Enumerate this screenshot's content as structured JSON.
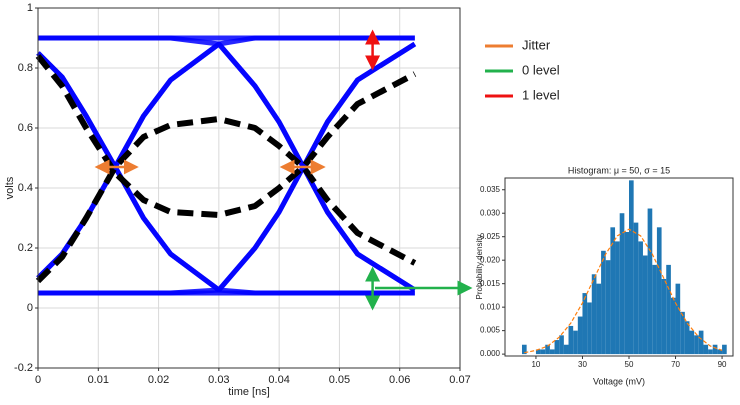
{
  "chart_data": [
    {
      "type": "line",
      "x_label": "time [ns]",
      "y_label": "volts",
      "xlim": [
        0,
        0.07
      ],
      "ylim": [
        -0.2,
        1
      ],
      "xticks": [
        0,
        0.01,
        0.02,
        0.03,
        0.04,
        0.05,
        0.06,
        0.07
      ],
      "yticks": [
        -0.2,
        0,
        0.2,
        0.4,
        0.6,
        0.8,
        1
      ],
      "grid": true,
      "x": [
        0,
        0.004,
        0.008,
        0.0128,
        0.0175,
        0.022,
        0.03,
        0.036,
        0.04,
        0.044,
        0.048,
        0.053,
        0.0625
      ],
      "series": [
        {
          "color": "#0000ff",
          "style": "solid",
          "values": [
            0.1,
            0.18,
            0.3,
            0.47,
            0.64,
            0.76,
            0.88,
            0.9,
            0.9,
            0.9,
            0.9,
            0.9,
            0.9
          ]
        },
        {
          "color": "#0000ff",
          "style": "solid",
          "values": [
            0.1,
            0.18,
            0.3,
            0.47,
            0.64,
            0.76,
            0.88,
            0.74,
            0.62,
            0.47,
            0.32,
            0.18,
            0.06
          ]
        },
        {
          "color": "#0000ff",
          "style": "solid",
          "values": [
            0.85,
            0.77,
            0.64,
            0.47,
            0.3,
            0.18,
            0.06,
            0.05,
            0.05,
            0.05,
            0.05,
            0.05,
            0.05
          ]
        },
        {
          "color": "#0000ff",
          "style": "solid",
          "values": [
            0.85,
            0.77,
            0.64,
            0.47,
            0.3,
            0.18,
            0.06,
            0.2,
            0.32,
            0.47,
            0.62,
            0.76,
            0.88
          ]
        },
        {
          "color": "#0000ff",
          "style": "solid",
          "values": [
            0.9,
            0.9,
            0.9,
            0.9,
            0.9,
            0.9,
            0.9,
            0.9,
            0.9,
            0.9,
            0.9,
            0.9,
            0.9
          ]
        },
        {
          "color": "#0000ff",
          "style": "solid",
          "values": [
            0.05,
            0.05,
            0.05,
            0.05,
            0.05,
            0.05,
            0.05,
            0.05,
            0.05,
            0.05,
            0.05,
            0.05,
            0.05
          ]
        },
        {
          "color": "#0000ff",
          "style": "solid",
          "values": [
            0.9,
            0.9,
            0.9,
            0.9,
            0.9,
            0.9,
            0.88,
            0.74,
            0.62,
            0.47,
            0.32,
            0.18,
            0.06
          ]
        },
        {
          "color": "#0000ff",
          "style": "solid",
          "values": [
            0.05,
            0.05,
            0.05,
            0.05,
            0.05,
            0.05,
            0.06,
            0.2,
            0.32,
            0.47,
            0.62,
            0.76,
            0.88
          ]
        },
        {
          "color": "#000000",
          "style": "dashed",
          "values": [
            0.84,
            0.74,
            0.6,
            0.45,
            0.36,
            0.32,
            0.31,
            0.34,
            0.4,
            0.47,
            0.57,
            0.68,
            0.78
          ]
        },
        {
          "color": "#000000",
          "style": "dashed",
          "values": [
            0.09,
            0.17,
            0.3,
            0.47,
            0.57,
            0.61,
            0.63,
            0.6,
            0.54,
            0.47,
            0.36,
            0.25,
            0.15
          ]
        }
      ],
      "legend": [
        {
          "label": "Jitter",
          "color": "#ed7d31"
        },
        {
          "label": "0 level",
          "color": "#22b14c"
        },
        {
          "label": "1 level",
          "color": "#ee1111"
        }
      ],
      "arrows": [
        {
          "legend": 0,
          "x": [
            0.0098,
            0.0163
          ],
          "y": [
            0.47,
            0.47
          ]
        },
        {
          "legend": 0,
          "x": [
            0.0405,
            0.0473
          ],
          "y": [
            0.47,
            0.47
          ]
        },
        {
          "legend": 2,
          "x": [
            0.0555,
            0.0555
          ],
          "y": [
            0.92,
            0.8
          ]
        },
        {
          "legend": 1,
          "x": [
            0.0555,
            0.0555
          ],
          "y": [
            0.13,
            0
          ]
        }
      ]
    },
    {
      "type": "histogram",
      "title": "Histogram: μ = 50, σ = 15",
      "x_label": "Voltage (mV)",
      "y_label": "Probability density",
      "color": "#1f77b4",
      "xlim": [
        -3.3,
        94.7
      ],
      "ylim": [
        -0.0004,
        0.0375
      ],
      "xticks": [
        10,
        30,
        50,
        70,
        90
      ],
      "yticks": [
        {
          "value": 0,
          "label": "0.000"
        },
        {
          "value": 0.005,
          "label": "0.005"
        },
        {
          "value": 0.01,
          "label": "0.010"
        },
        {
          "value": 0.015,
          "label": "0.015"
        },
        {
          "value": 0.02,
          "label": "0.020"
        },
        {
          "value": 0.025,
          "label": "0.025"
        },
        {
          "value": 0.03,
          "label": "0.030"
        },
        {
          "value": 0.035,
          "label": "0.035"
        }
      ],
      "bins": [
        4,
        6,
        8,
        10,
        12,
        14,
        16,
        18,
        20,
        22,
        24,
        26,
        28,
        30,
        32,
        34,
        36,
        38,
        40,
        42,
        44,
        46,
        48,
        50,
        52,
        54,
        56,
        58,
        60,
        62,
        64,
        66,
        68,
        70,
        72,
        74,
        76,
        78,
        80,
        82,
        84,
        86,
        88,
        90,
        92
      ],
      "values": [
        0.002,
        0,
        0,
        0.001,
        0.001,
        0.002,
        0.001,
        0.003,
        0.004,
        0.002,
        0.006,
        0.005,
        0.008,
        0.013,
        0.011,
        0.017,
        0.015,
        0.022,
        0.02,
        0.027,
        0.024,
        0.03,
        0.026,
        0.037,
        0.028,
        0.024,
        0.021,
        0.031,
        0.019,
        0.027,
        0.016,
        0.019,
        0.012,
        0.015,
        0.009,
        0.007,
        0.005,
        0.004,
        0.005,
        0.002,
        0.001,
        0.002,
        0.001,
        0.002
      ],
      "fit": {
        "color": "#ff7f0e",
        "x": [
          5,
          10,
          15,
          20,
          25,
          30,
          35,
          40,
          45,
          50,
          55,
          60,
          65,
          70,
          75,
          80,
          85,
          90
        ],
        "values": [
          0.0003,
          0.0008,
          0.0017,
          0.0036,
          0.0066,
          0.0109,
          0.0161,
          0.0213,
          0.0252,
          0.0266,
          0.0252,
          0.0213,
          0.0161,
          0.0109,
          0.0066,
          0.0036,
          0.0017,
          0.0008
        ]
      }
    }
  ]
}
